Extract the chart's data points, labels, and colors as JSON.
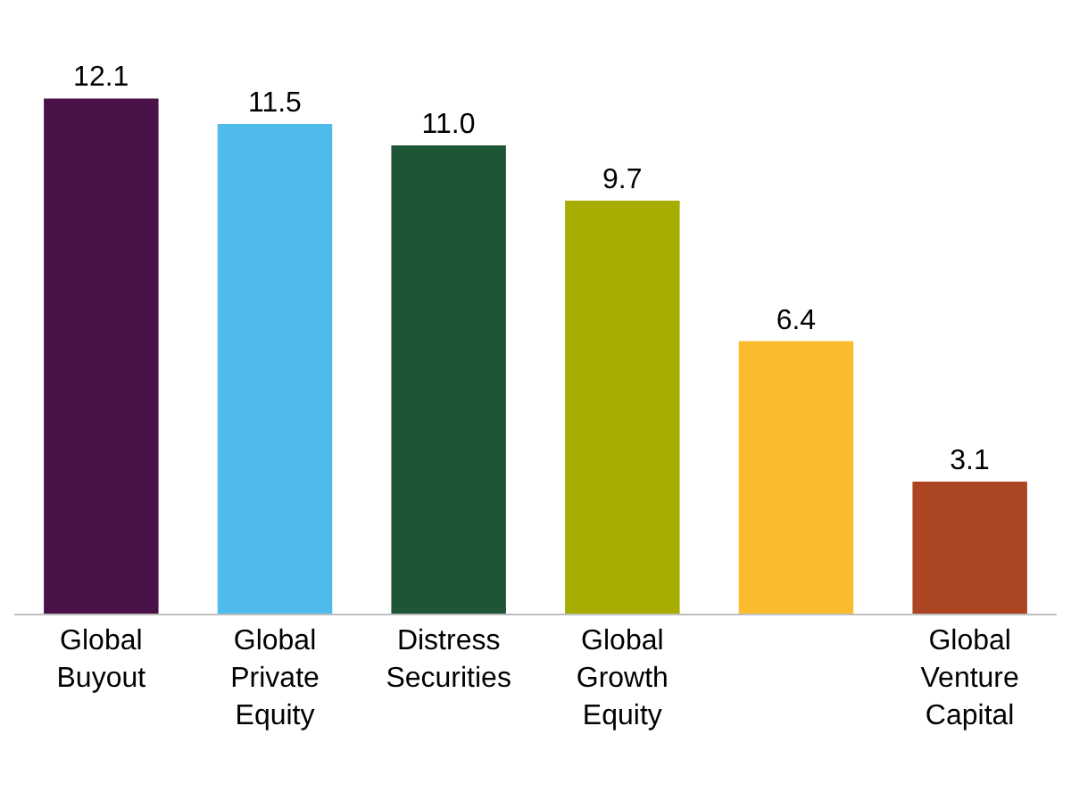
{
  "chart_data": {
    "type": "bar",
    "categories": [
      "Global Buyout",
      "Global Private Equity",
      "Distress Securities",
      "Global Growth Equity",
      null,
      "Global Venture Capital"
    ],
    "values": [
      12.1,
      11.5,
      11.0,
      9.7,
      6.4,
      3.1
    ],
    "colors": [
      "#4a1248",
      "#4fbbea",
      "#1d5535",
      "#a6ad00",
      "#fbbb2e",
      "#ac4522"
    ],
    "value_labels": [
      "12.1",
      "11.5",
      "11.0",
      "9.7",
      "6.4",
      "3.1"
    ]
  }
}
